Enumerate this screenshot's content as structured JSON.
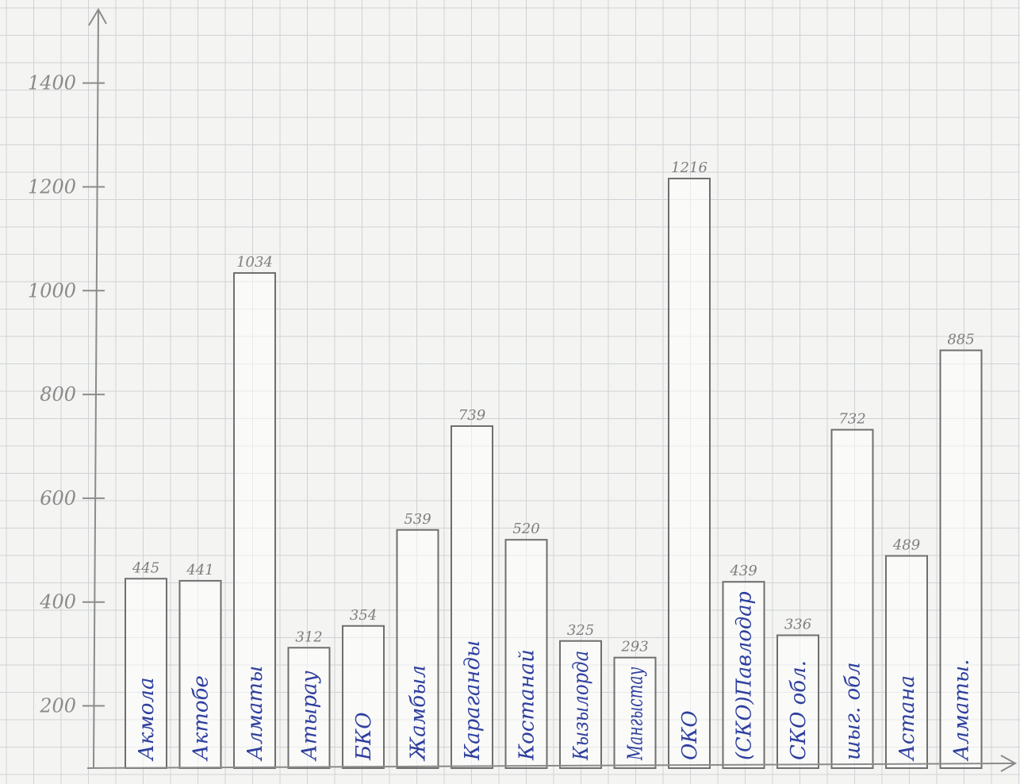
{
  "chart_data": {
    "type": "bar",
    "title": "",
    "xlabel": "",
    "ylabel": "",
    "categories": [
      "Акмола",
      "Актобе",
      "Алматы",
      "Атырау",
      "БКО",
      "Жамбыл",
      "Караганды",
      "Костанай",
      "Кызылорда",
      "Мангыстау",
      "ОКО",
      "(СКО)Павлодар",
      "СКО обл.",
      "шыг. обл",
      "Астана",
      "Алматы."
    ],
    "values": [
      445,
      441,
      1034,
      312,
      354,
      539,
      739,
      520,
      325,
      293,
      1216,
      439,
      336,
      732,
      489,
      885
    ],
    "data_labels": [
      "445",
      "441",
      "1034",
      "312",
      "354",
      "539",
      "739",
      "520",
      "325",
      "293",
      "1216",
      "439",
      "336",
      "732",
      "489",
      "885"
    ],
    "y_ticks": [
      200,
      400,
      600,
      800,
      1000,
      1200,
      1400
    ],
    "y_tick_labels": [
      "200",
      "400",
      "600",
      "800",
      "1000",
      "1200",
      "1400"
    ],
    "ylim": [
      80,
      1560
    ],
    "grid": true,
    "legend": "none"
  },
  "colors": {
    "paper": "#f4f4f2",
    "grid": "#cfd3d6",
    "pencil": "#6f6f6f",
    "ink": "#2e3f9e"
  }
}
